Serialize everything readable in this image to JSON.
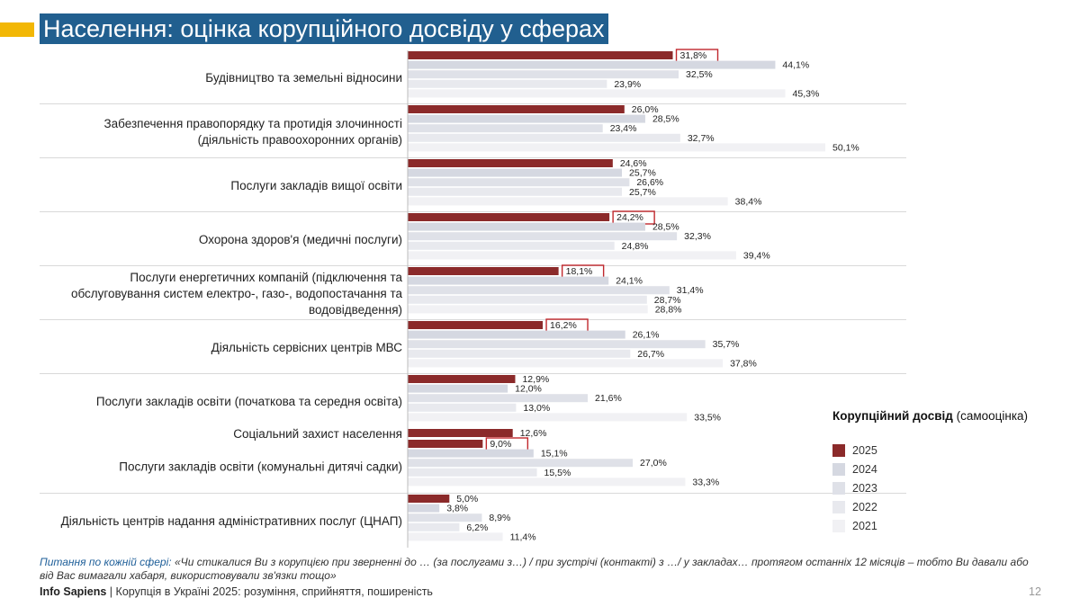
{
  "slide": {
    "title": "Населення: оцінка корупційного досвіду у сферах",
    "footnote_label": "Питання по кожній сфері:",
    "footnote_text": "«Чи стикалися Ви з корупцією при зверненні до … (за послугами з…) / при зустрічі (контакті) з …/ у закладах… протягом останніх 12 місяців – тобто Ви давали або від Вас вимагали хабаря, використовували зв'язки тощо»",
    "source_brand": "Info Sapiens",
    "source_sep": " | ",
    "source_text": "Корупція в Україні 2025: розуміння, сприйняття, поширеність",
    "page_number": "12"
  },
  "legend": {
    "title_bold": "Корупційний досвід",
    "title_rest": " (самооцінка)"
  },
  "colors": {
    "title_bg": "#215f8f",
    "accent": "#f2b705",
    "highlight_box": "#c0282d",
    "separator": "#d9d9d9"
  },
  "chart_data": {
    "type": "bar",
    "orientation": "horizontal",
    "unit": "%",
    "xlim": [
      0,
      55
    ],
    "series": [
      {
        "name": "2025",
        "color": "#8b2a2a"
      },
      {
        "name": "2024",
        "color": "#d5d8e1"
      },
      {
        "name": "2023",
        "color": "#dfe1e8"
      },
      {
        "name": "2022",
        "color": "#e8e9ee"
      },
      {
        "name": "2021",
        "color": "#f1f1f4"
      }
    ],
    "categories": [
      {
        "label": [
          "Будівництво та земельні відносини"
        ],
        "values": [
          31.8,
          44.1,
          32.5,
          23.9,
          45.3
        ],
        "labels": [
          "31,8%",
          "44,1%",
          "32,5%",
          "23,9%",
          "45,3%"
        ],
        "highlight": true
      },
      {
        "label": [
          "Забезпечення правопорядку та протидія злочинності",
          "(діяльність правоохоронних органів)"
        ],
        "values": [
          26.0,
          28.5,
          23.4,
          32.7,
          50.1
        ],
        "labels": [
          "26,0%",
          "28,5%",
          "23,4%",
          "32,7%",
          "50,1%"
        ],
        "highlight": false
      },
      {
        "label": [
          "Послуги закладів вищої освіти"
        ],
        "values": [
          24.6,
          25.7,
          26.6,
          25.7,
          38.4
        ],
        "labels": [
          "24,6%",
          "25,7%",
          "26,6%",
          "25,7%",
          "38,4%"
        ],
        "highlight": false
      },
      {
        "label": [
          "Охорона здоров'я (медичні послуги)"
        ],
        "values": [
          24.2,
          28.5,
          32.3,
          24.8,
          39.4
        ],
        "labels": [
          "24,2%",
          "28,5%",
          "32,3%",
          "24,8%",
          "39,4%"
        ],
        "highlight": true
      },
      {
        "label": [
          "Послуги енергетичних компаній (підключення та",
          "обслуговування систем електро-, газо-, водопостачання та",
          "водовідведення)"
        ],
        "values": [
          18.1,
          24.1,
          31.4,
          28.7,
          28.8
        ],
        "labels": [
          "18,1%",
          "24,1%",
          "31,4%",
          "28,7%",
          "28,8%"
        ],
        "highlight": true
      },
      {
        "label": [
          "Діяльність сервісних центрів МВС"
        ],
        "values": [
          16.2,
          26.1,
          35.7,
          26.7,
          37.8
        ],
        "labels": [
          "16,2%",
          "26,1%",
          "35,7%",
          "26,7%",
          "37,8%"
        ],
        "highlight": true
      },
      {
        "label": [
          "Послуги закладів освіти (початкова та середня освіта)"
        ],
        "values": [
          12.9,
          12.0,
          21.6,
          13.0,
          33.5
        ],
        "labels": [
          "12,9%",
          "12,0%",
          "21,6%",
          "13,0%",
          "33,5%"
        ],
        "highlight": false
      },
      {
        "label": [
          "Соціальний захист населення"
        ],
        "values": [
          12.6
        ],
        "labels": [
          "12,6%"
        ],
        "highlight": false
      },
      {
        "label": [
          "Послуги закладів освіти (комунальні дитячі садки)"
        ],
        "values": [
          9.0,
          15.1,
          27.0,
          15.5,
          33.3
        ],
        "labels": [
          "9,0%",
          "15,1%",
          "27,0%",
          "15,5%",
          "33,3%"
        ],
        "highlight": true
      },
      {
        "label": [
          "Діяльність центрів надання адміністративних послуг (ЦНАП)"
        ],
        "values": [
          5.0,
          3.8,
          8.9,
          6.2,
          11.4
        ],
        "labels": [
          "5,0%",
          "3,8%",
          "8,9%",
          "6,2%",
          "11,4%"
        ],
        "highlight": false
      }
    ]
  }
}
